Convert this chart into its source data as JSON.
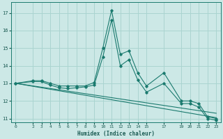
{
  "xlabel": "Humidex (Indice chaleur)",
  "background_color": "#cce8e6",
  "grid_color": "#aad4d0",
  "line_color": "#1a7a6e",
  "xlim": [
    -0.5,
    23.5
  ],
  "ylim": [
    10.8,
    17.6
  ],
  "yticks": [
    11,
    12,
    13,
    14,
    15,
    16,
    17
  ],
  "xticks": [
    0,
    2,
    3,
    4,
    5,
    6,
    7,
    8,
    9,
    10,
    11,
    12,
    13,
    14,
    15,
    17,
    19,
    20,
    21,
    22,
    23
  ],
  "series": [
    {
      "x": [
        0,
        2,
        3,
        4,
        5,
        6,
        7,
        8,
        9,
        10,
        11,
        12,
        13,
        14,
        15,
        17,
        19,
        20,
        21,
        22,
        23
      ],
      "y": [
        13.0,
        13.15,
        13.15,
        13.0,
        12.85,
        12.85,
        12.85,
        12.85,
        13.05,
        15.0,
        17.15,
        14.65,
        14.85,
        13.6,
        12.85,
        13.6,
        12.0,
        12.0,
        11.85,
        11.1,
        11.0
      ],
      "has_markers": true
    },
    {
      "x": [
        0,
        2,
        3,
        4,
        5,
        6,
        7,
        8,
        9,
        10,
        11,
        12,
        13,
        14,
        15,
        17,
        19,
        20,
        21,
        22,
        23
      ],
      "y": [
        13.0,
        13.1,
        13.1,
        12.9,
        12.75,
        12.7,
        12.75,
        12.8,
        12.9,
        14.5,
        16.6,
        14.0,
        14.35,
        13.2,
        12.5,
        13.0,
        11.85,
        11.85,
        11.65,
        11.0,
        10.9
      ],
      "has_markers": true
    },
    {
      "x": [
        0,
        23
      ],
      "y": [
        13.0,
        11.05
      ],
      "has_markers": false
    },
    {
      "x": [
        0,
        23
      ],
      "y": [
        13.0,
        11.3
      ],
      "has_markers": false
    }
  ]
}
